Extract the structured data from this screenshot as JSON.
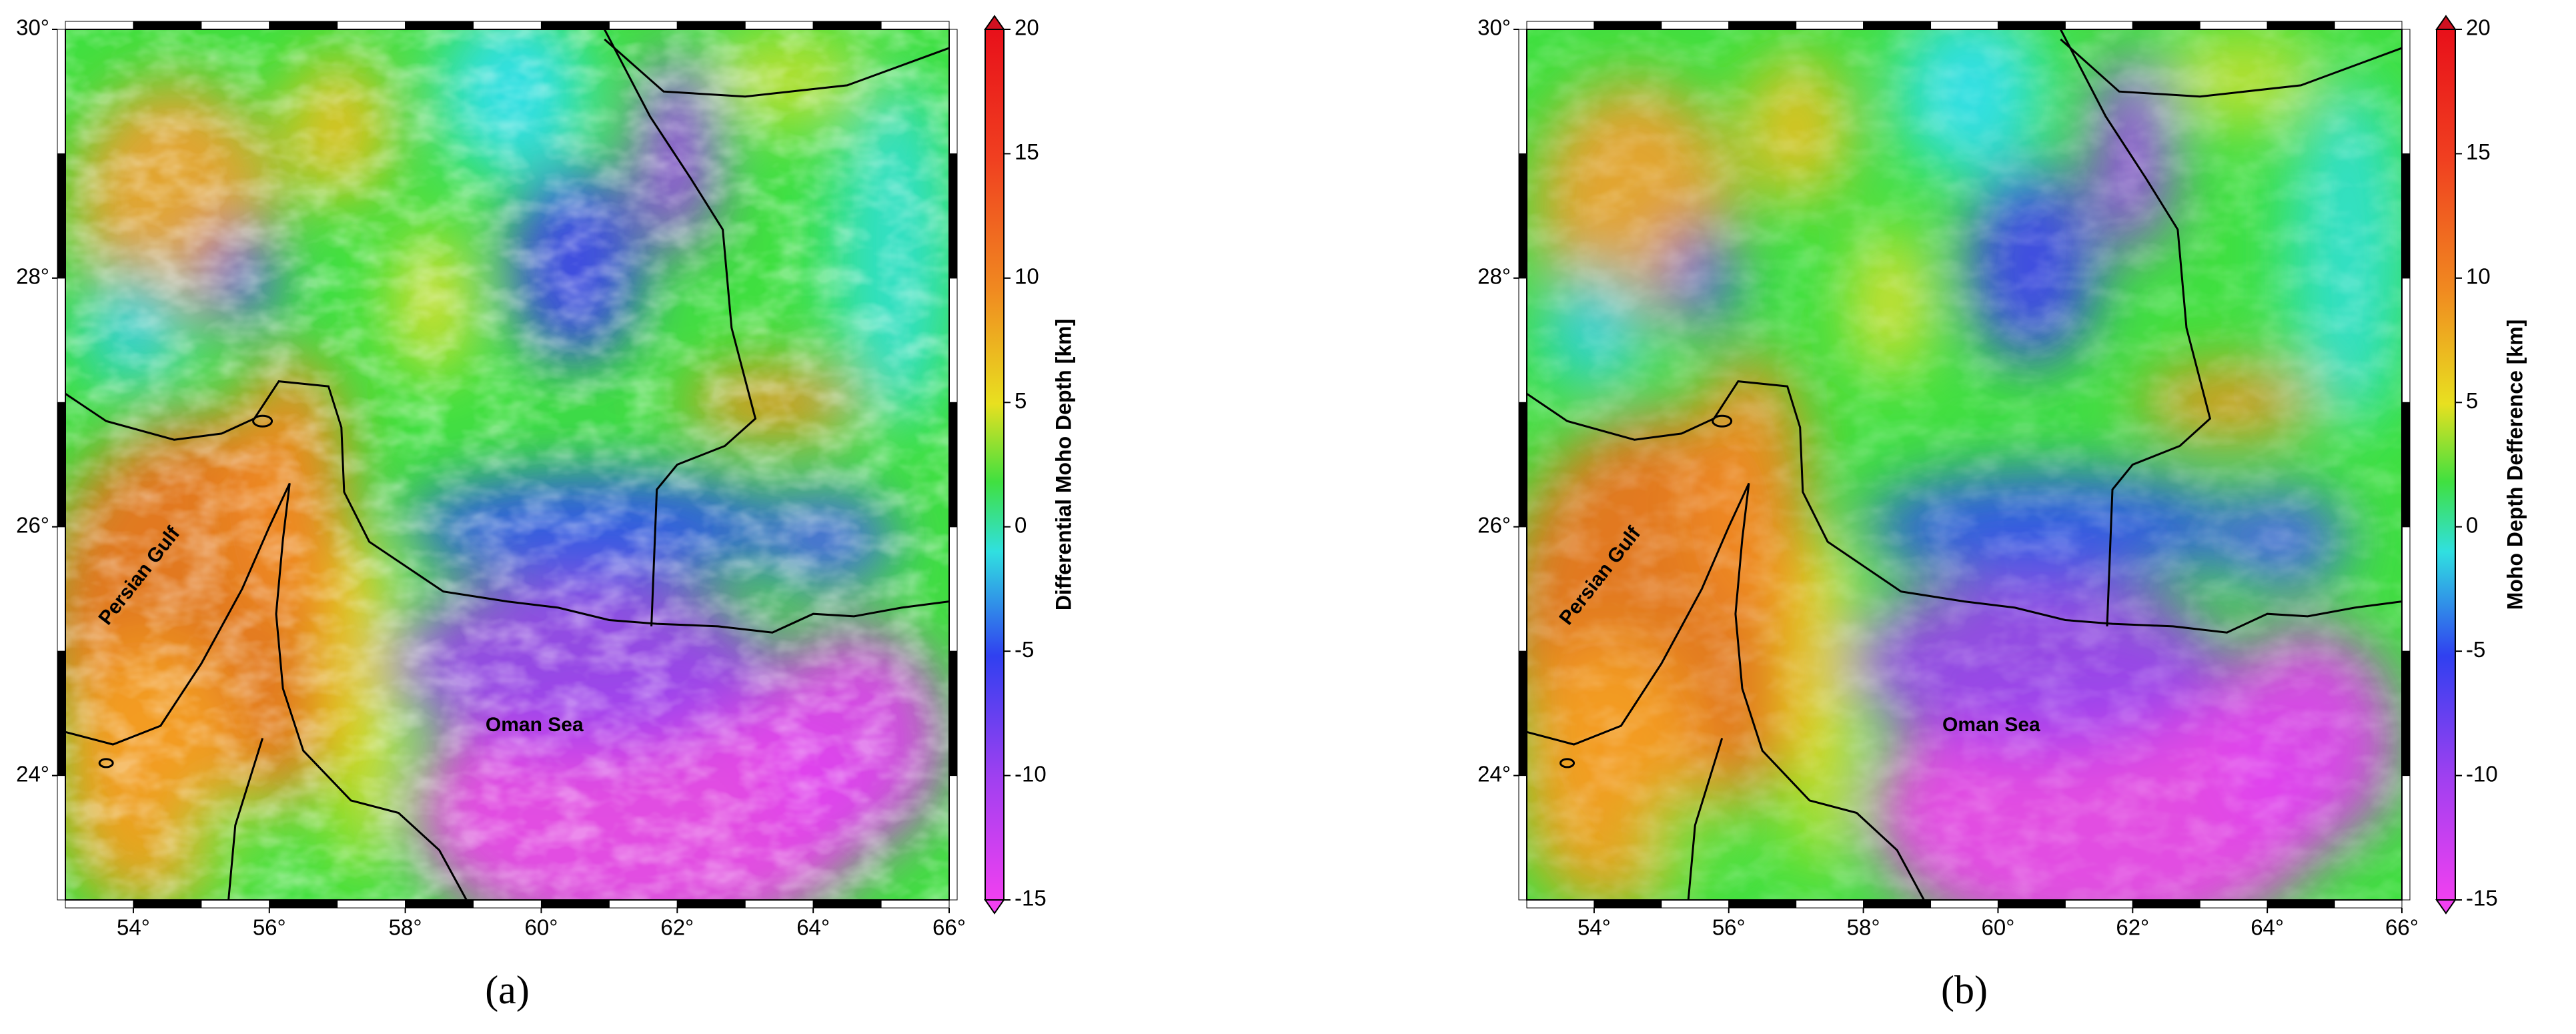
{
  "map": {
    "xlim": [
      53,
      66
    ],
    "ylim": [
      23,
      30
    ],
    "xticks": [
      {
        "value": 54,
        "label": "54°"
      },
      {
        "value": 56,
        "label": "56°"
      },
      {
        "value": 58,
        "label": "58°"
      },
      {
        "value": 60,
        "label": "60°"
      },
      {
        "value": 62,
        "label": "62°"
      },
      {
        "value": 64,
        "label": "64°"
      },
      {
        "value": 66,
        "label": "66°"
      }
    ],
    "yticks": [
      {
        "value": 24,
        "label": "24°"
      },
      {
        "value": 26,
        "label": "26°"
      },
      {
        "value": 28,
        "label": "28°"
      },
      {
        "value": 30,
        "label": "30°"
      }
    ]
  },
  "panels": [
    {
      "label": "(a)",
      "places": [
        "Persian Gulf",
        "Oman Sea"
      ],
      "colorbar": {
        "label": "Differential Moho Depth [km]",
        "lim": [
          -15,
          20
        ],
        "ticks": [
          20,
          15,
          10,
          5,
          0,
          -5,
          -10,
          -15
        ]
      }
    },
    {
      "label": "(b)",
      "places": [
        "Persian Gulf",
        "Oman Sea"
      ],
      "colorbar": {
        "label": "Moho Depth Defference [km]",
        "lim": [
          -15,
          20
        ],
        "ticks": [
          20,
          15,
          10,
          5,
          0,
          -5,
          -10,
          -15
        ]
      }
    }
  ]
}
